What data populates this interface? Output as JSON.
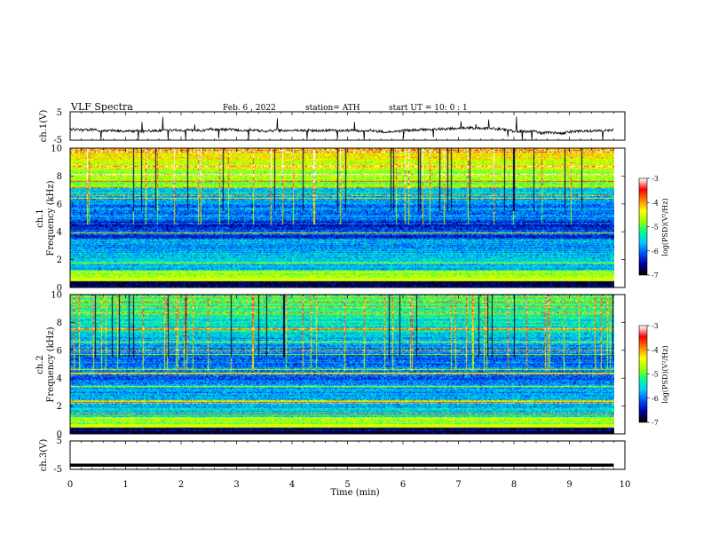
{
  "header": {
    "title": "VLF  Spectra",
    "date": "Feb. 6  , 2022",
    "station": "station= ATH",
    "start": "start  UT  =   10: 0   : 1"
  },
  "chart_data": [
    {
      "type": "line",
      "panel": "ch1-waveform",
      "ylabel": "ch.1(V)",
      "yticks": [
        "5",
        "-5"
      ],
      "ylim": [
        -5,
        5
      ],
      "xlim": [
        0,
        10
      ],
      "data_end_min": 9.8,
      "baseline_v": -1.5
    },
    {
      "type": "heatmap",
      "panel": "ch1-spectrogram",
      "ylabel_channel": "ch.1",
      "ylabel": "Frequency  (kHz)",
      "yticks": [
        "0",
        "2",
        "4",
        "6",
        "8",
        "10"
      ],
      "ylim": [
        0,
        10
      ],
      "xlim": [
        0,
        10
      ],
      "data_end_min": 9.8,
      "colorbar": {
        "label": "log(PSD)(V²/Hz)",
        "ticks": [
          "-3",
          "-4",
          "-5",
          "-6",
          "-7"
        ],
        "range": [
          -7,
          -3
        ],
        "colors": [
          "#000000",
          "#0000a0",
          "#0050ff",
          "#00c8ff",
          "#00ff90",
          "#a0ff00",
          "#ffff00",
          "#ff8000",
          "#ff0000",
          "#ffffff"
        ]
      }
    },
    {
      "type": "heatmap",
      "panel": "ch2-spectrogram",
      "ylabel_channel": "ch.2",
      "ylabel": "Frequency  (kHz)",
      "yticks": [
        "0",
        "2",
        "4",
        "6",
        "8",
        "10"
      ],
      "ylim": [
        0,
        10
      ],
      "xlim": [
        0,
        10
      ],
      "data_end_min": 9.8,
      "colorbar": {
        "label": "log(PSD)(V²/Hz)",
        "ticks": [
          "-3",
          "-4",
          "-5",
          "-6",
          "-7"
        ],
        "range": [
          -7,
          -3
        ],
        "colors": [
          "#000000",
          "#0000a0",
          "#0050ff",
          "#00c8ff",
          "#00ff90",
          "#a0ff00",
          "#ffff00",
          "#ff8000",
          "#ff0000",
          "#ffffff"
        ]
      }
    },
    {
      "type": "line",
      "panel": "ch3-waveform",
      "ylabel": "ch.3(V)",
      "yticks": [
        "5",
        "-5"
      ],
      "ylim": [
        -5,
        5
      ],
      "xlim": [
        0,
        10
      ],
      "data_end_min": 9.8,
      "constant_v": -3.5
    }
  ],
  "xaxis": {
    "label": "Time  (min)",
    "ticks": [
      "0",
      "1",
      "2",
      "3",
      "4",
      "5",
      "6",
      "7",
      "8",
      "9",
      "10"
    ]
  }
}
